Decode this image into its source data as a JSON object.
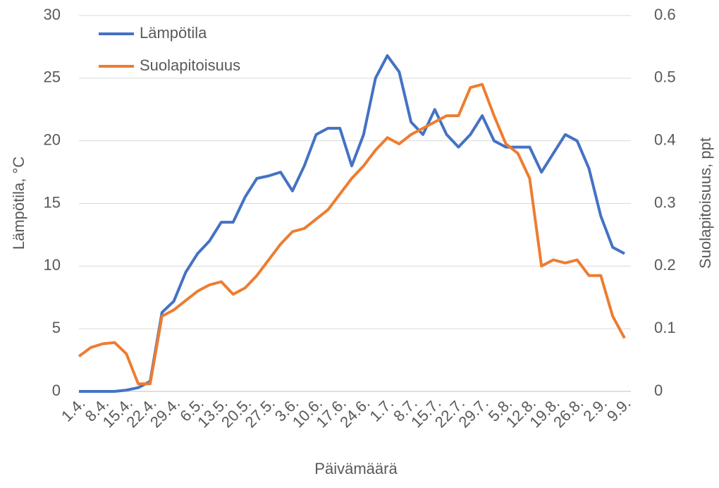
{
  "chart_data": {
    "type": "line",
    "x_label": "Päivämäärä",
    "y_label": "Lämpötila, °C",
    "y2_label": "Suolapitoisuus, ppt",
    "categories": [
      "1.4.",
      null,
      "8.4.",
      null,
      "15.4.",
      null,
      "22.4.",
      null,
      "29.4.",
      null,
      "6.5.",
      null,
      "13.5.",
      null,
      "20.5.",
      null,
      "27.5.",
      null,
      "3.6.",
      null,
      "10.6.",
      null,
      "17.6.",
      null,
      "24.6.",
      null,
      "1.7.",
      null,
      "8.7.",
      null,
      "15.7.",
      null,
      "22.7.",
      null,
      "29.7.",
      null,
      "5.8.",
      null,
      "12.8.",
      null,
      "19.8.",
      null,
      "26.8.",
      null,
      "2.9.",
      null,
      "9.9."
    ],
    "series": [
      {
        "name": "Lämpötila",
        "color": "#4472c4",
        "axis": "y",
        "values": [
          0,
          0,
          0,
          0,
          0.1,
          0.3,
          0.8,
          6.3,
          7.2,
          9.5,
          11,
          12,
          13.5,
          13.5,
          15.5,
          17,
          17.2,
          17.5,
          16,
          18,
          20.5,
          21,
          21,
          18,
          20.5,
          25,
          26.8,
          25.5,
          21.5,
          20.5,
          22.5,
          20.5,
          19.5,
          20.5,
          22,
          20,
          19.5,
          19.5,
          19.5,
          17.5,
          19,
          20.5,
          20,
          17.8,
          14,
          11.5,
          11
        ]
      },
      {
        "name": "Suolapitoisuus",
        "color": "#ed7d31",
        "axis": "y2",
        "values": [
          0.056,
          0.07,
          0.076,
          0.078,
          0.06,
          0.012,
          0.012,
          0.12,
          0.13,
          0.145,
          0.16,
          0.17,
          0.175,
          0.155,
          0.165,
          0.185,
          0.21,
          0.235,
          0.255,
          0.26,
          0.275,
          0.29,
          0.315,
          0.34,
          0.36,
          0.385,
          0.405,
          0.395,
          0.41,
          0.42,
          0.43,
          0.44,
          0.44,
          0.485,
          0.49,
          0.44,
          0.395,
          0.38,
          0.34,
          0.2,
          0.21,
          0.205,
          0.21,
          0.185,
          0.185,
          0.12,
          0.085
        ]
      }
    ],
    "ylim": [
      0,
      30
    ],
    "yticks": [
      0,
      5,
      10,
      15,
      20,
      25,
      30
    ],
    "y2lim": [
      0,
      0.6
    ],
    "y2ticks": [
      0,
      0.1,
      0.2,
      0.3,
      0.4,
      0.5,
      0.6
    ],
    "grid": true,
    "legend": "top-left"
  }
}
